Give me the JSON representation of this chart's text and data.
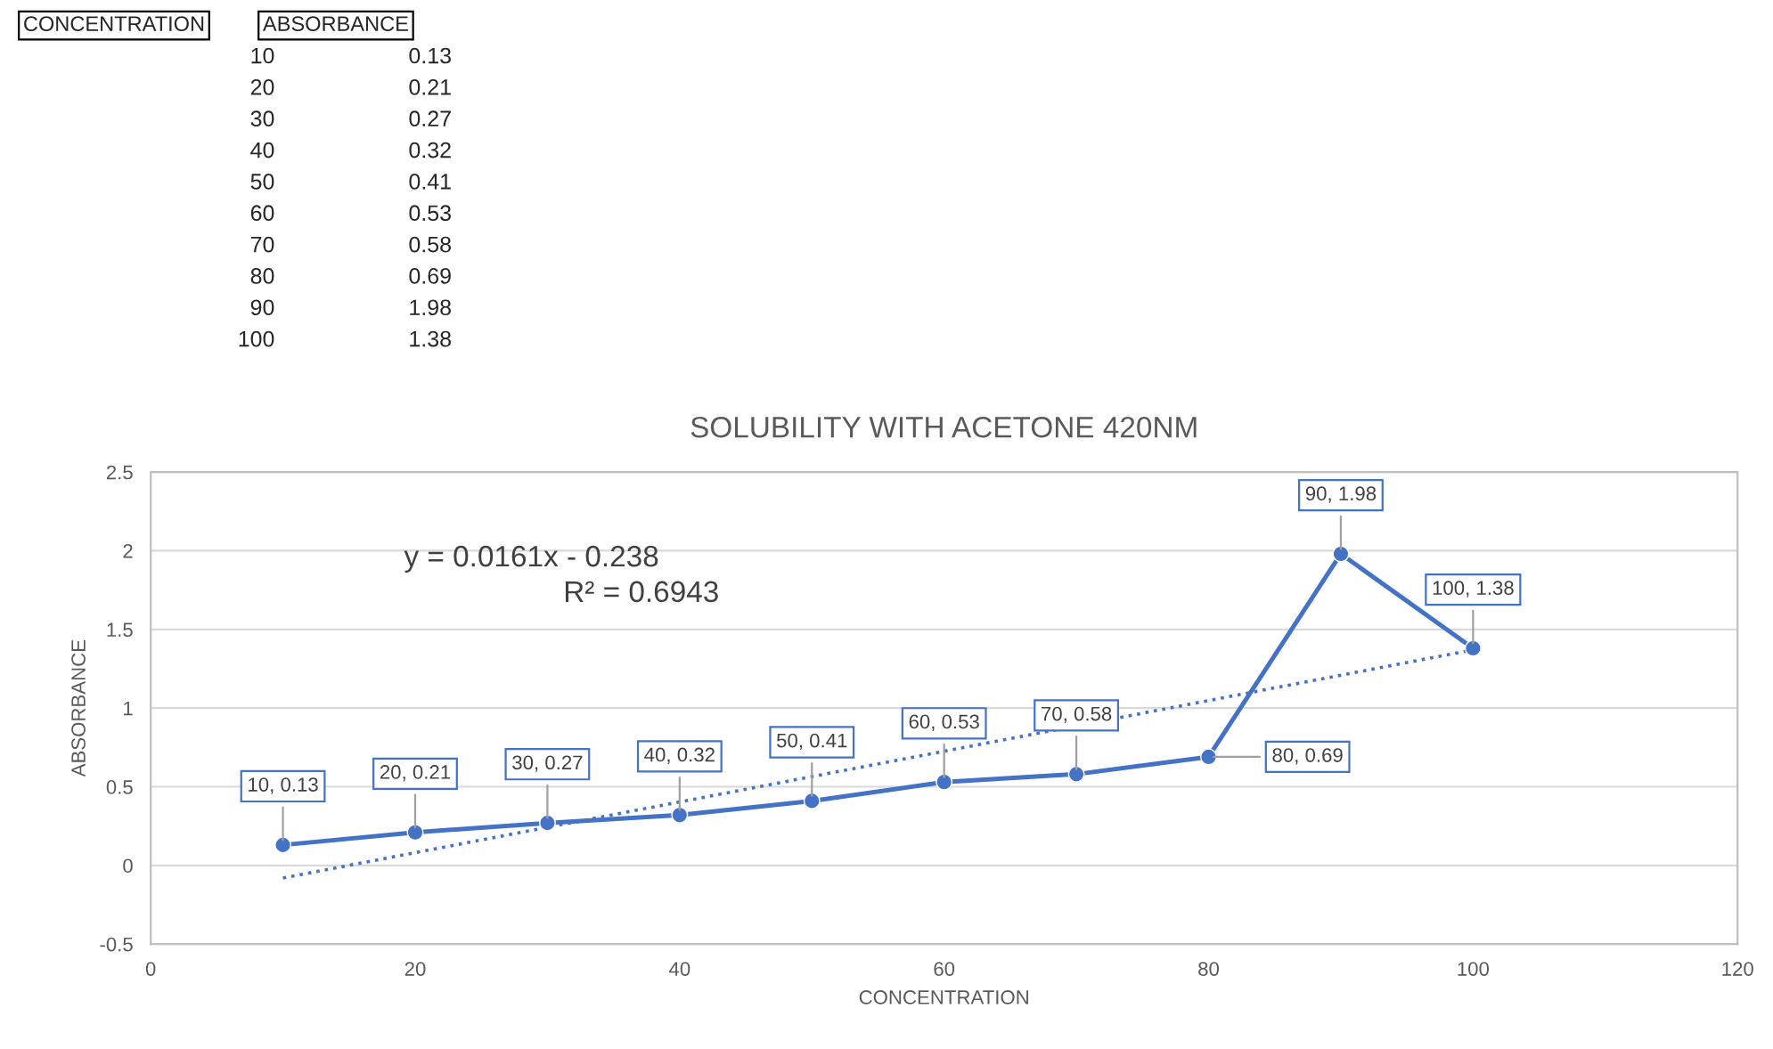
{
  "chart_data": [
    {
      "type": "other",
      "annotations": [
        "CONCENTRATION",
        "ABSORBANCE",
        "10 0.13",
        "20 0.21",
        "30 0.27",
        "40 0.32",
        "50 0.41",
        "60 0.53",
        "70 0.58",
        "80 0.69",
        "90 1.98",
        "100 1.38"
      ]
    },
    {
      "type": "line",
      "title": "SOLUBILITY WITH ACETONE 420NM",
      "xlabel": "CONCENTRATION",
      "ylabel": "ABSORBANCE",
      "x": [
        10,
        20,
        30,
        40,
        50,
        60,
        70,
        80,
        90,
        100
      ],
      "series": [
        {
          "type": "line",
          "color": "#4472c4",
          "values": [
            0.13,
            0.21,
            0.27,
            0.32,
            0.41,
            0.53,
            0.58,
            0.69,
            1.98,
            1.38
          ],
          "marker": "circle",
          "line_style": "solid",
          "value_labels": [
            "10, 0.13",
            "20, 0.21",
            "30, 0.27",
            "40, 0.32",
            "50, 0.41",
            "60, 0.53",
            "70, 0.58",
            "80, 0.69",
            "90, 1.98",
            "100, 1.38"
          ]
        },
        {
          "type": "line",
          "color": "#4472c4",
          "x": [
            10,
            100
          ],
          "values": [
            -0.08,
            1.37
          ],
          "marker": "none",
          "line_style": "dotted"
        }
      ],
      "annotations": [
        "y = 0.0161x - 0.238",
        "R² = 0.6943"
      ],
      "xlim": [
        0,
        120
      ],
      "xticks": [
        0,
        20,
        40,
        60,
        80,
        100,
        120
      ],
      "ylim": [
        -0.5,
        2.5
      ],
      "yticks": [
        -0.5,
        0,
        0.5,
        1,
        1.5,
        2,
        2.5
      ],
      "grid": "y",
      "legend": false
    }
  ]
}
